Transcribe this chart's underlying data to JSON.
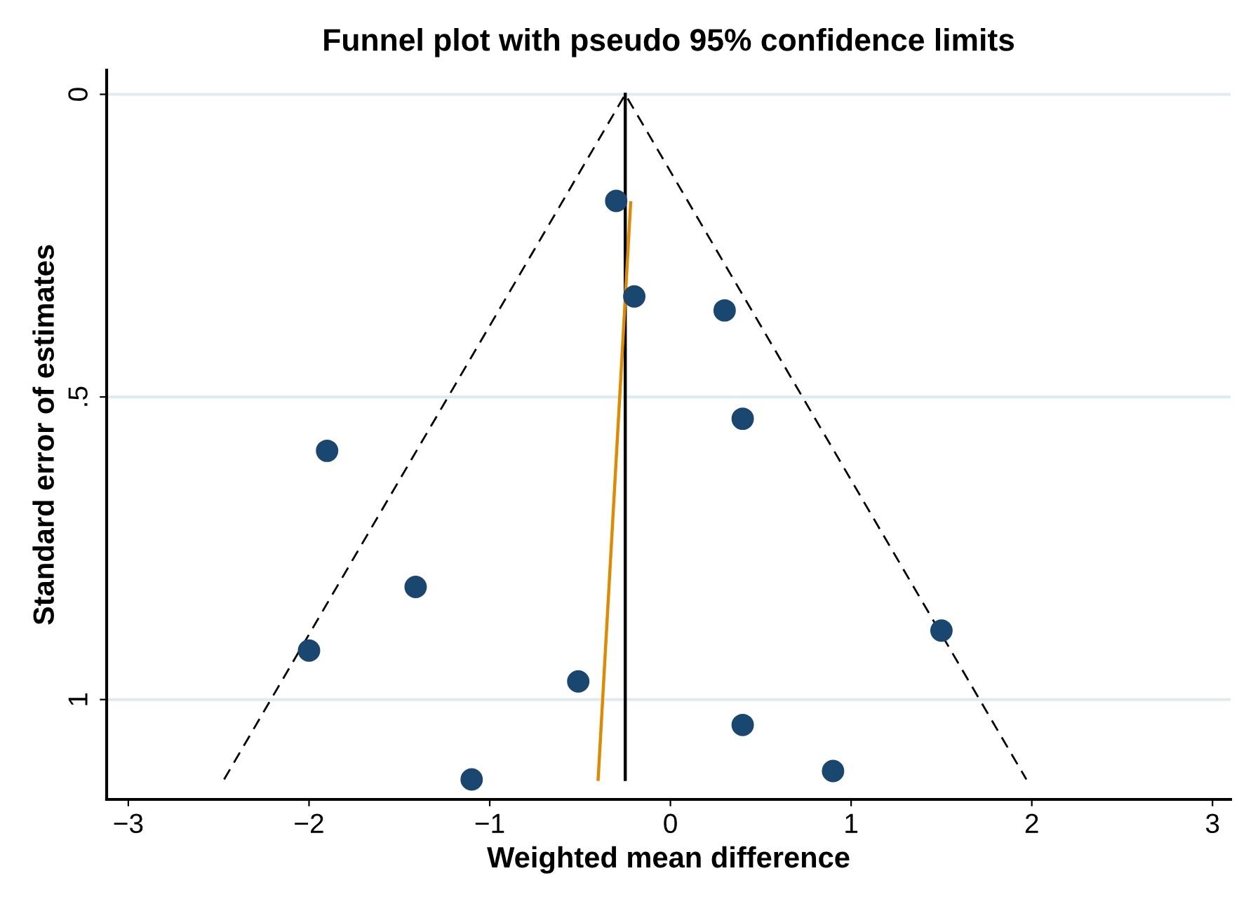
{
  "chart_data": {
    "type": "scatter",
    "title": "Funnel plot with pseudo 95% confidence limits",
    "xlabel": "Weighted mean difference",
    "ylabel": "Standard error of estimates",
    "xlim": [
      -3.12,
      3.1
    ],
    "xticks": [
      {
        "value": -3,
        "label": "−3"
      },
      {
        "value": -2,
        "label": "−2"
      },
      {
        "value": -1,
        "label": "−1"
      },
      0,
      1,
      2,
      3
    ],
    "ylim": [
      1.165,
      -0.04
    ],
    "yticks": [
      0,
      {
        "value": 0.5,
        "label": ".5"
      },
      1
    ],
    "grid": "y",
    "legend": false,
    "series": [
      {
        "type": "line",
        "color": "#000000",
        "line_style": "dashed",
        "x": [
          -2.47,
          -0.25,
          1.97
        ],
        "values": [
          1.132,
          0,
          1.132
        ]
      },
      {
        "type": "line",
        "color": "#000000",
        "line_style": "solid",
        "x": [
          -0.25,
          -0.25
        ],
        "values": [
          0,
          1.132
        ]
      },
      {
        "type": "line",
        "color": "#e08a00",
        "line_style": "solid",
        "x": [
          -0.22,
          -0.4
        ],
        "values": [
          0.179,
          1.132
        ]
      },
      {
        "color": "#1a476f",
        "marker": "circle",
        "x": [
          -0.3,
          -0.2,
          0.3,
          0.4,
          -1.9,
          -1.41,
          -2.0,
          1.5,
          -0.51,
          0.4,
          -1.1,
          0.9
        ],
        "values": [
          0.176,
          0.334,
          0.357,
          0.536,
          0.589,
          0.814,
          0.919,
          0.886,
          0.97,
          1.042,
          1.132,
          1.118
        ]
      }
    ]
  }
}
